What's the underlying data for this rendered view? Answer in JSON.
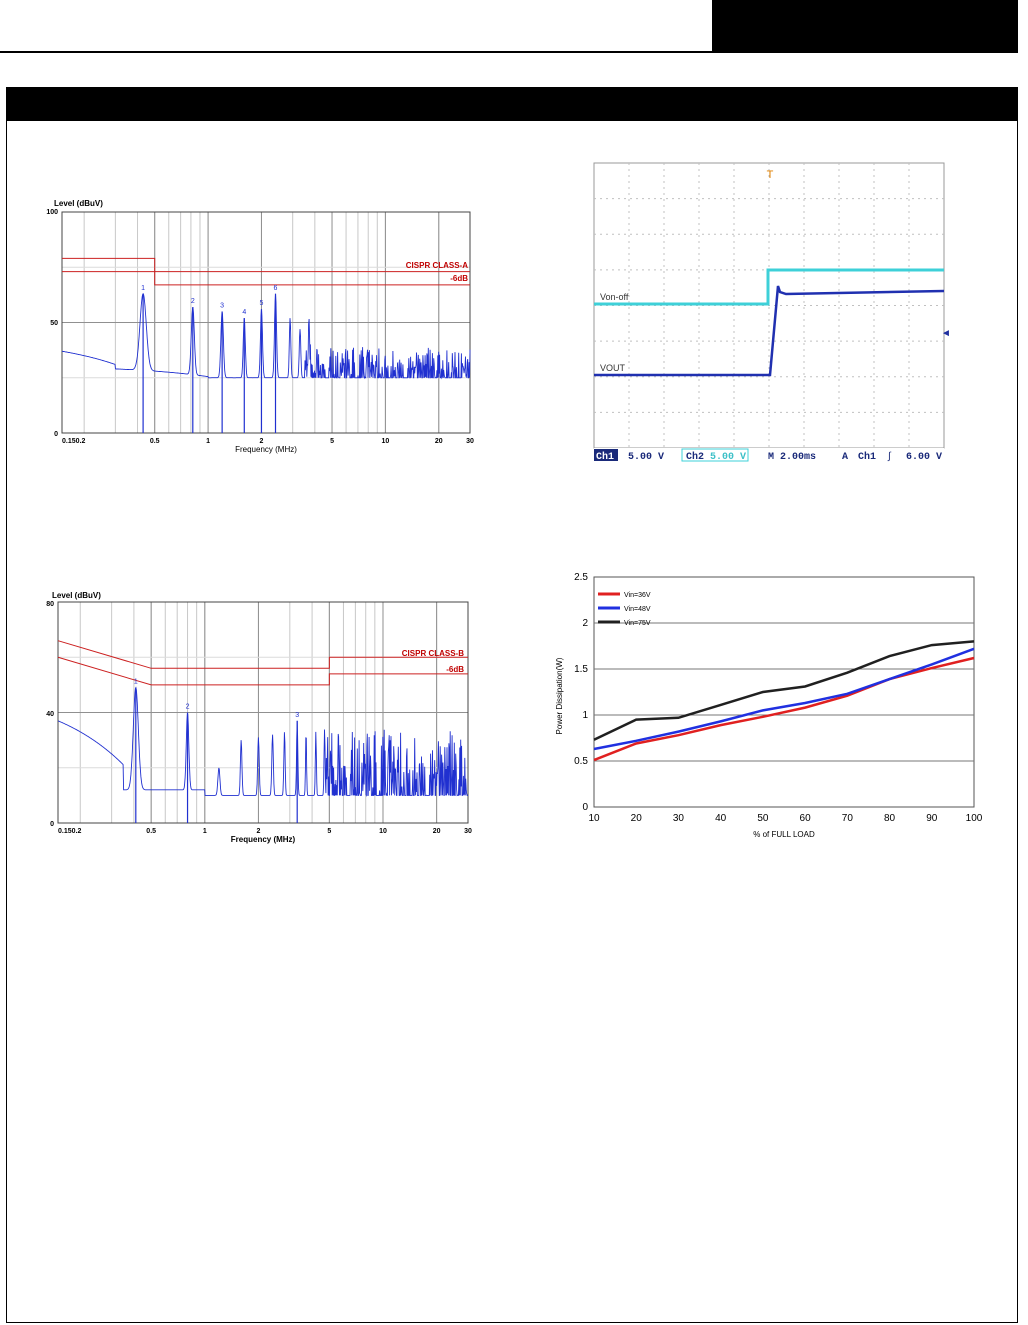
{
  "emi_a": {
    "ylabel": "Level (dBuV)",
    "xlabel": "Frequency (MHz)",
    "y_ticks": [
      "100",
      "50",
      "0"
    ],
    "x_ticks": [
      "0.150.2",
      "0.5",
      "1",
      "2",
      "5",
      "10",
      "20",
      "30"
    ],
    "limit_label": "CISPR CLASS-A",
    "margin_label": "-6dB",
    "markers": [
      "1",
      "2",
      "3",
      "4",
      "5",
      "6"
    ]
  },
  "scope": {
    "ch1_trace_label": "Von-off",
    "ch2_trace_label": "VOUT",
    "status": {
      "ch1_tag": "Ch1",
      "ch1_scale": "5.00 V",
      "ch2_tag": "Ch2",
      "ch2_scale": "5.00 V",
      "timebase": "M 2.00ms",
      "trigger_tag": "A",
      "trigger_src": "Ch1",
      "trigger_level": "6.00 V"
    }
  },
  "emi_b": {
    "ylabel": "Level (dBuV)",
    "xlabel": "Frequency (MHz)",
    "y_ticks": [
      "80",
      "40",
      "0"
    ],
    "x_ticks": [
      "0.150.2",
      "0.5",
      "1",
      "2",
      "5",
      "10",
      "20",
      "30"
    ],
    "limit_label": "CISPR CLASS-B",
    "margin_label": "-6dB",
    "markers": [
      "1",
      "2",
      "3"
    ]
  },
  "chart_data": {
    "type": "line",
    "ylabel": "Power Dissipation(W)",
    "xlabel": "% of FULL LOAD",
    "x": [
      10,
      20,
      30,
      40,
      50,
      60,
      70,
      80,
      90,
      100
    ],
    "ylim": [
      0,
      2.5
    ],
    "y_ticks": [
      "0",
      "0.5",
      "1",
      "1.5",
      "2",
      "2.5"
    ],
    "x_ticks": [
      "10",
      "20",
      "30",
      "40",
      "50",
      "60",
      "70",
      "80",
      "90",
      "100"
    ],
    "legend_position": "top-left",
    "series": [
      {
        "name": "Vin=36V",
        "color": "#e02020",
        "values": [
          0.51,
          0.69,
          0.78,
          0.89,
          0.98,
          1.08,
          1.21,
          1.39,
          1.51,
          1.62
        ]
      },
      {
        "name": "Vin=48V",
        "color": "#2030e0",
        "values": [
          0.63,
          0.72,
          0.82,
          0.93,
          1.05,
          1.13,
          1.23,
          1.39,
          1.55,
          1.72
        ]
      },
      {
        "name": "Vin=75V",
        "color": "#202020",
        "values": [
          0.73,
          0.95,
          0.97,
          1.11,
          1.25,
          1.31,
          1.46,
          1.64,
          1.76,
          1.8
        ]
      }
    ]
  }
}
